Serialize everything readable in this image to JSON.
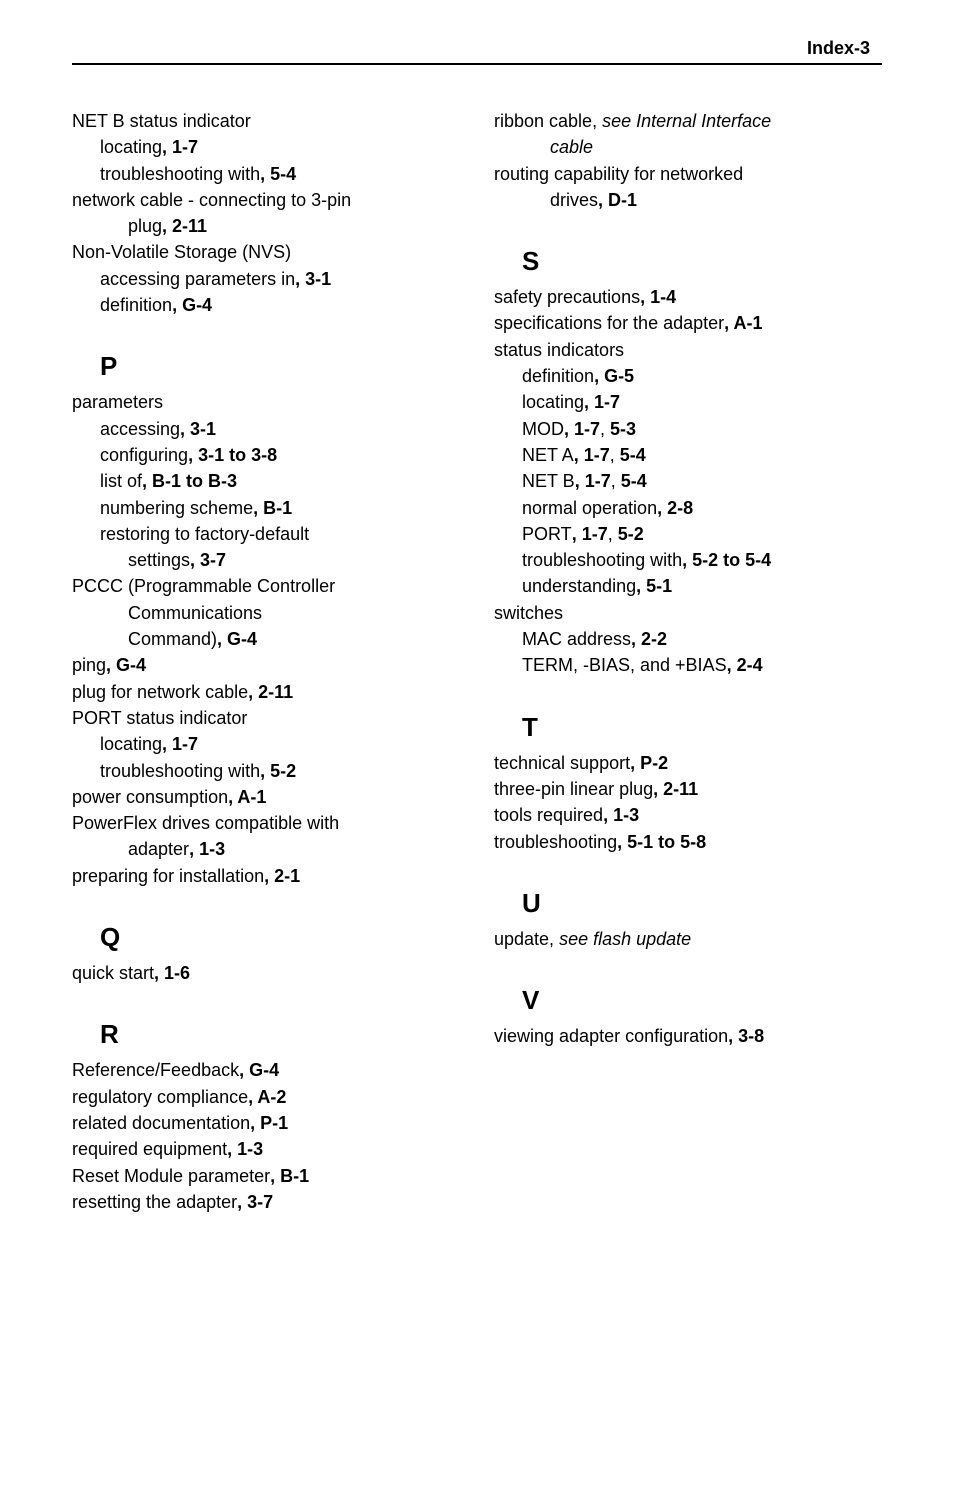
{
  "header": {
    "title": "Index-3"
  },
  "left": [
    {
      "lvl": 0,
      "runs": [
        {
          "t": "NET B status indicator"
        }
      ]
    },
    {
      "lvl": 1,
      "runs": [
        {
          "t": "locating"
        },
        {
          "t": ", 1-7",
          "b": true
        }
      ]
    },
    {
      "lvl": 1,
      "runs": [
        {
          "t": "troubleshooting with"
        },
        {
          "t": ", 5-4",
          "b": true
        }
      ]
    },
    {
      "lvl": 0,
      "runs": [
        {
          "t": "network cable - connecting to 3-pin"
        }
      ]
    },
    {
      "lvl": 2,
      "runs": [
        {
          "t": "plug"
        },
        {
          "t": ", 2-11",
          "b": true
        }
      ]
    },
    {
      "lvl": 0,
      "runs": [
        {
          "t": "Non-Volatile Storage (NVS)"
        }
      ]
    },
    {
      "lvl": 1,
      "runs": [
        {
          "t": "accessing parameters in"
        },
        {
          "t": ", 3-1",
          "b": true
        }
      ]
    },
    {
      "lvl": 1,
      "runs": [
        {
          "t": "definition"
        },
        {
          "t": ", G-4",
          "b": true
        }
      ]
    },
    {
      "letter": "P"
    },
    {
      "lvl": 0,
      "runs": [
        {
          "t": "parameters"
        }
      ]
    },
    {
      "lvl": 1,
      "runs": [
        {
          "t": "accessing"
        },
        {
          "t": ", 3-1",
          "b": true
        }
      ]
    },
    {
      "lvl": 1,
      "runs": [
        {
          "t": "configuring"
        },
        {
          "t": ", 3-1 to 3-8",
          "b": true
        }
      ]
    },
    {
      "lvl": 1,
      "runs": [
        {
          "t": "list of"
        },
        {
          "t": ", B-1 to B-3",
          "b": true
        }
      ]
    },
    {
      "lvl": 1,
      "runs": [
        {
          "t": "numbering scheme"
        },
        {
          "t": ", B-1",
          "b": true
        }
      ]
    },
    {
      "lvl": 1,
      "runs": [
        {
          "t": "restoring to factory-default"
        }
      ]
    },
    {
      "lvl": 2,
      "runs": [
        {
          "t": "settings"
        },
        {
          "t": ", 3-7",
          "b": true
        }
      ]
    },
    {
      "lvl": 0,
      "runs": [
        {
          "t": "PCCC (Programmable Controller"
        }
      ]
    },
    {
      "lvl": 2,
      "runs": [
        {
          "t": "Communications"
        }
      ]
    },
    {
      "lvl": 2,
      "runs": [
        {
          "t": "Command)"
        },
        {
          "t": ", G-4",
          "b": true
        }
      ]
    },
    {
      "lvl": 0,
      "runs": [
        {
          "t": "ping"
        },
        {
          "t": ", G-4",
          "b": true
        }
      ]
    },
    {
      "lvl": 0,
      "runs": [
        {
          "t": "plug for network cable"
        },
        {
          "t": ", 2-11",
          "b": true
        }
      ]
    },
    {
      "lvl": 0,
      "runs": [
        {
          "t": "PORT status indicator"
        }
      ]
    },
    {
      "lvl": 1,
      "runs": [
        {
          "t": "locating"
        },
        {
          "t": ", 1-7",
          "b": true
        }
      ]
    },
    {
      "lvl": 1,
      "runs": [
        {
          "t": "troubleshooting with"
        },
        {
          "t": ", 5-2",
          "b": true
        }
      ]
    },
    {
      "lvl": 0,
      "runs": [
        {
          "t": "power consumption"
        },
        {
          "t": ", A-1",
          "b": true
        }
      ]
    },
    {
      "lvl": 0,
      "runs": [
        {
          "t": "PowerFlex drives compatible with"
        }
      ]
    },
    {
      "lvl": 2,
      "runs": [
        {
          "t": "adapter"
        },
        {
          "t": ", 1-3",
          "b": true
        }
      ]
    },
    {
      "lvl": 0,
      "runs": [
        {
          "t": "preparing for installation"
        },
        {
          "t": ", 2-1",
          "b": true
        }
      ]
    },
    {
      "letter": "Q"
    },
    {
      "lvl": 0,
      "runs": [
        {
          "t": "quick start"
        },
        {
          "t": ", 1-6",
          "b": true
        }
      ]
    },
    {
      "letter": "R"
    },
    {
      "lvl": 0,
      "runs": [
        {
          "t": "Reference/Feedback"
        },
        {
          "t": ", G-4",
          "b": true
        }
      ]
    },
    {
      "lvl": 0,
      "runs": [
        {
          "t": "regulatory compliance"
        },
        {
          "t": ", A-2",
          "b": true
        }
      ]
    },
    {
      "lvl": 0,
      "runs": [
        {
          "t": "related documentation"
        },
        {
          "t": ", P-1",
          "b": true
        }
      ]
    },
    {
      "lvl": 0,
      "runs": [
        {
          "t": "required equipment"
        },
        {
          "t": ", 1-3",
          "b": true
        }
      ]
    },
    {
      "lvl": 0,
      "runs": [
        {
          "t": "Reset Module parameter"
        },
        {
          "t": ", B-1",
          "b": true
        }
      ]
    },
    {
      "lvl": 0,
      "runs": [
        {
          "t": "resetting the adapter"
        },
        {
          "t": ", 3-7",
          "b": true
        }
      ]
    }
  ],
  "right": [
    {
      "lvl": 0,
      "runs": [
        {
          "t": "ribbon cable, "
        },
        {
          "t": "see Internal Interface",
          "i": true
        }
      ]
    },
    {
      "lvl": 2,
      "runs": [
        {
          "t": "cable",
          "i": true
        }
      ]
    },
    {
      "lvl": 0,
      "runs": [
        {
          "t": "routing capability for networked"
        }
      ]
    },
    {
      "lvl": 2,
      "runs": [
        {
          "t": "drives"
        },
        {
          "t": ", D-1",
          "b": true
        }
      ]
    },
    {
      "letter": "S"
    },
    {
      "lvl": 0,
      "runs": [
        {
          "t": "safety precautions"
        },
        {
          "t": ", 1-4",
          "b": true
        }
      ]
    },
    {
      "lvl": 0,
      "runs": [
        {
          "t": "specifications for the adapter"
        },
        {
          "t": ", A-1",
          "b": true
        }
      ]
    },
    {
      "lvl": 0,
      "runs": [
        {
          "t": "status indicators"
        }
      ]
    },
    {
      "lvl": 1,
      "runs": [
        {
          "t": "definition"
        },
        {
          "t": ", G-5",
          "b": true
        }
      ]
    },
    {
      "lvl": 1,
      "runs": [
        {
          "t": "locating"
        },
        {
          "t": ", 1-7",
          "b": true
        }
      ]
    },
    {
      "lvl": 1,
      "runs": [
        {
          "t": "MOD"
        },
        {
          "t": ", 1-7",
          "b": true
        },
        {
          "t": ", "
        },
        {
          "t": "5-3",
          "b": true
        }
      ]
    },
    {
      "lvl": 1,
      "runs": [
        {
          "t": "NET A"
        },
        {
          "t": ", 1-7",
          "b": true
        },
        {
          "t": ", "
        },
        {
          "t": "5-4",
          "b": true
        }
      ]
    },
    {
      "lvl": 1,
      "runs": [
        {
          "t": "NET B"
        },
        {
          "t": ", 1-7",
          "b": true
        },
        {
          "t": ", "
        },
        {
          "t": "5-4",
          "b": true
        }
      ]
    },
    {
      "lvl": 1,
      "runs": [
        {
          "t": "normal operation"
        },
        {
          "t": ", 2-8",
          "b": true
        }
      ]
    },
    {
      "lvl": 1,
      "runs": [
        {
          "t": "PORT"
        },
        {
          "t": ", 1-7",
          "b": true
        },
        {
          "t": ", "
        },
        {
          "t": "5-2",
          "b": true
        }
      ]
    },
    {
      "lvl": 1,
      "runs": [
        {
          "t": "troubleshooting with"
        },
        {
          "t": ", 5-2 to 5-4",
          "b": true
        }
      ]
    },
    {
      "lvl": 1,
      "runs": [
        {
          "t": "understanding"
        },
        {
          "t": ", 5-1",
          "b": true
        }
      ]
    },
    {
      "lvl": 0,
      "runs": [
        {
          "t": "switches"
        }
      ]
    },
    {
      "lvl": 1,
      "runs": [
        {
          "t": "MAC address"
        },
        {
          "t": ", 2-2",
          "b": true
        }
      ]
    },
    {
      "lvl": 1,
      "runs": [
        {
          "t": "TERM, -BIAS, and +BIAS"
        },
        {
          "t": ", 2-4",
          "b": true
        }
      ]
    },
    {
      "letter": "T"
    },
    {
      "lvl": 0,
      "runs": [
        {
          "t": "technical support"
        },
        {
          "t": ", P-2",
          "b": true
        }
      ]
    },
    {
      "lvl": 0,
      "runs": [
        {
          "t": "three-pin linear plug"
        },
        {
          "t": ", 2-11",
          "b": true
        }
      ]
    },
    {
      "lvl": 0,
      "runs": [
        {
          "t": "tools required"
        },
        {
          "t": ", 1-3",
          "b": true
        }
      ]
    },
    {
      "lvl": 0,
      "runs": [
        {
          "t": "troubleshooting"
        },
        {
          "t": ", 5-1 to 5-8",
          "b": true
        }
      ]
    },
    {
      "letter": "U"
    },
    {
      "lvl": 0,
      "runs": [
        {
          "t": "update, "
        },
        {
          "t": "see flash update",
          "i": true
        }
      ]
    },
    {
      "letter": "V"
    },
    {
      "lvl": 0,
      "runs": [
        {
          "t": "viewing adapter configuration"
        },
        {
          "t": ", 3-8",
          "b": true
        }
      ]
    }
  ]
}
